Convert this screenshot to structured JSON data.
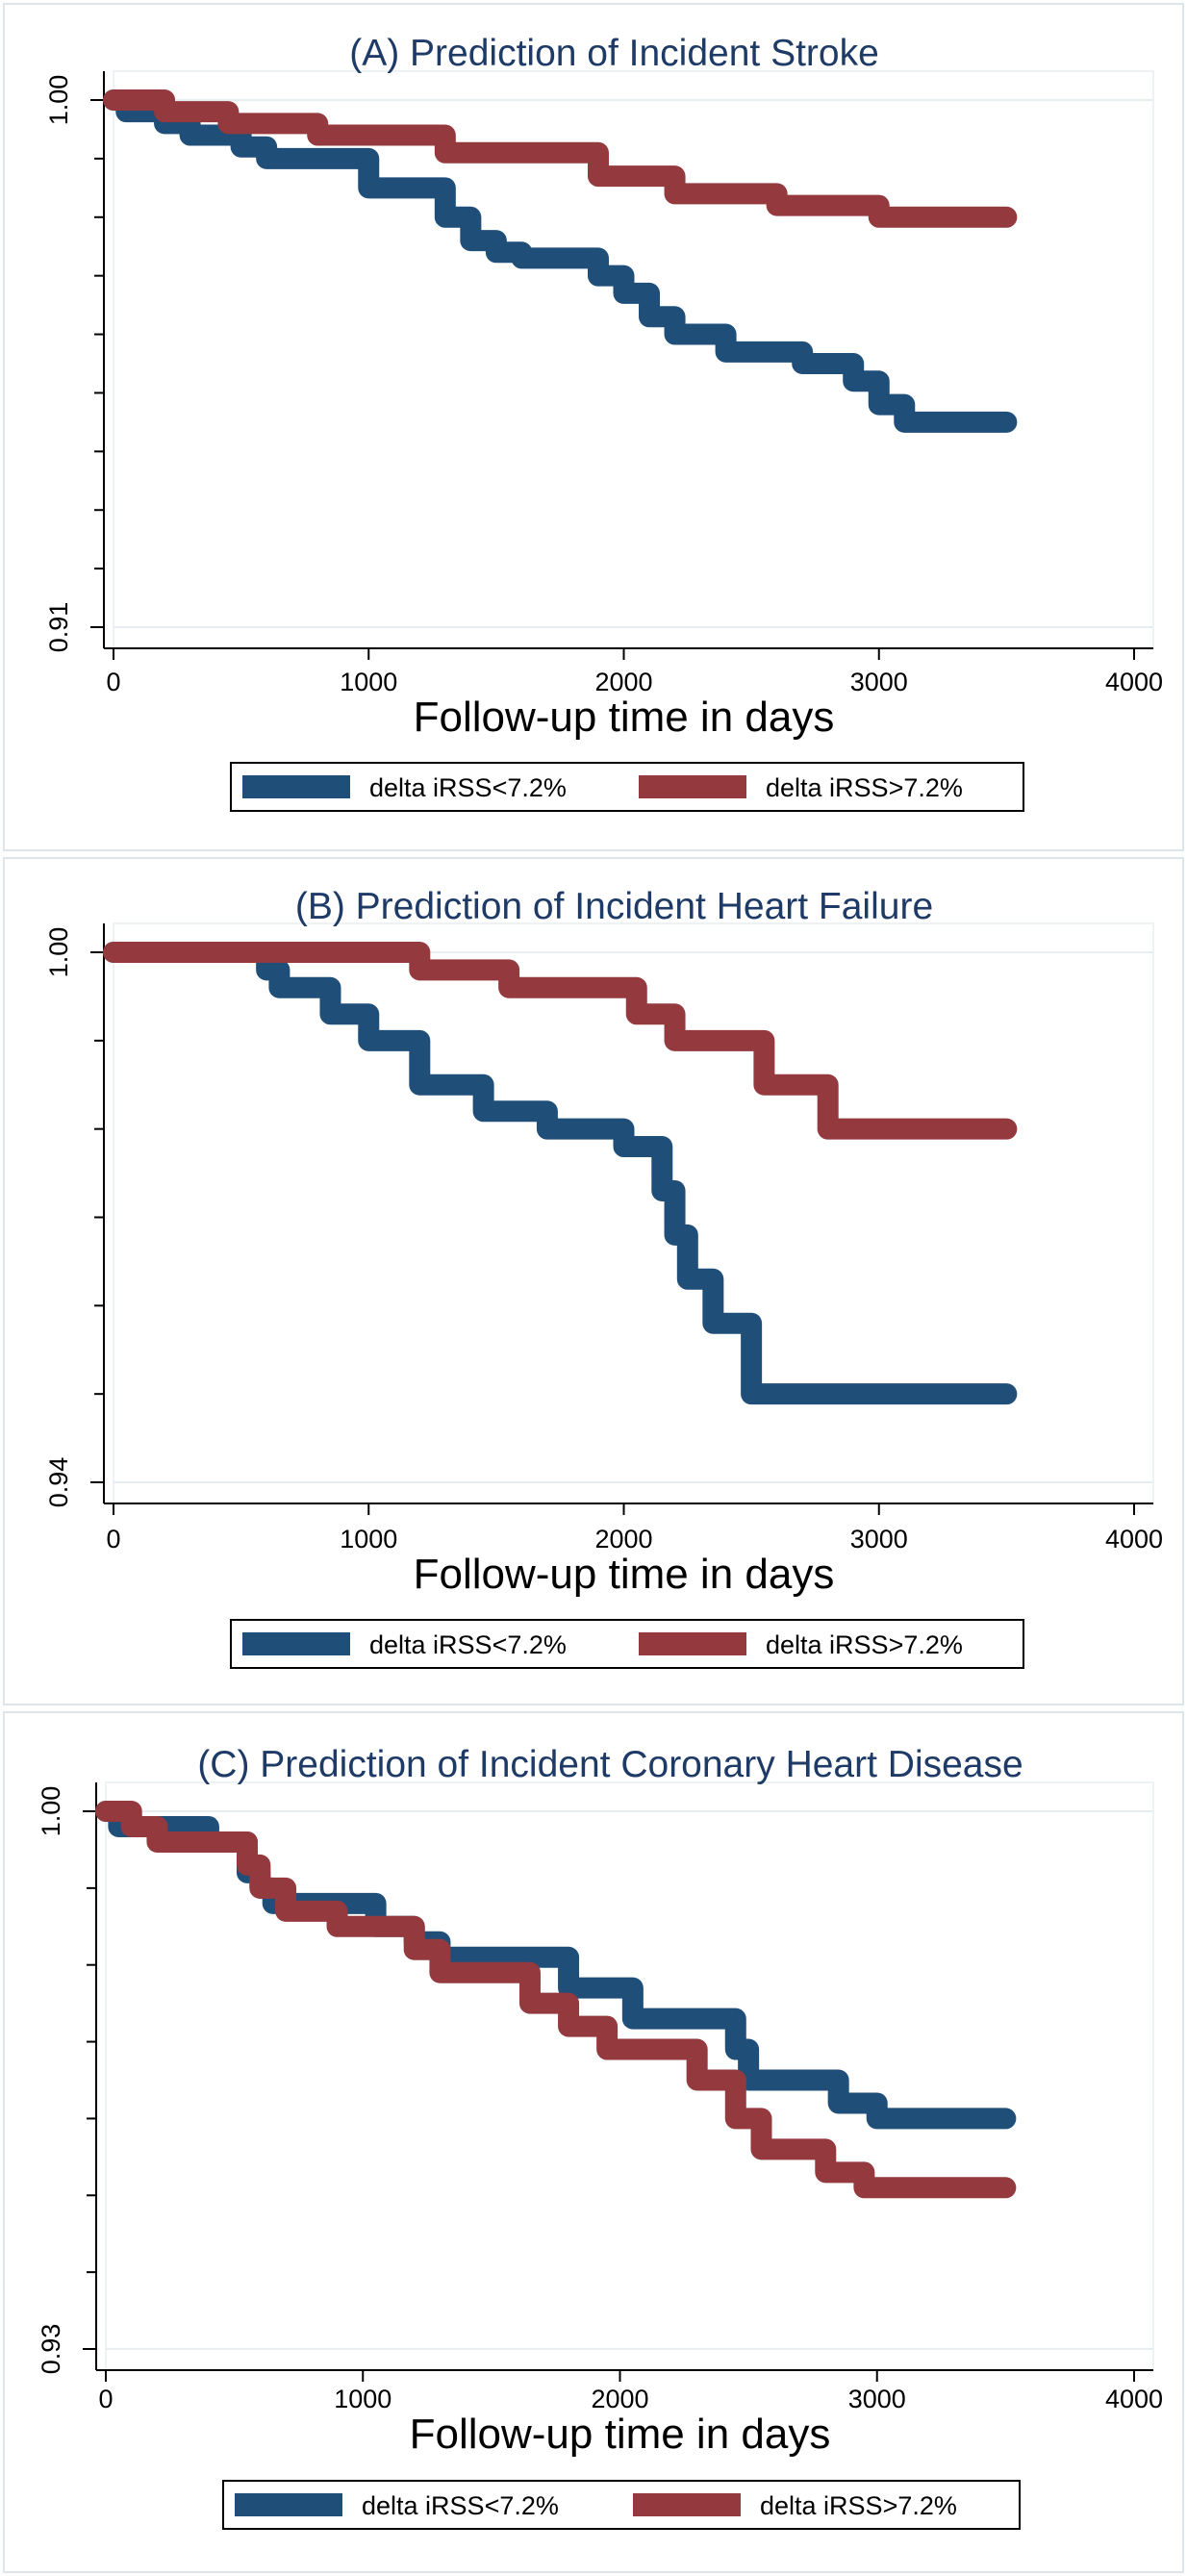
{
  "figure": {
    "xlabel": "Follow-up time in days",
    "colors": {
      "series_1": "#1f4e79",
      "series_2": "#943a3e",
      "grid": "#e6eef1",
      "panel_border": "#dde6ea"
    }
  },
  "chart_data": [
    {
      "type": "line",
      "title": "(A) Prediction of Incident Stroke",
      "xlabel": "Follow-up time in days",
      "ylabel": "",
      "xlim": [
        0,
        4000
      ],
      "ylim": [
        0.91,
        1.0
      ],
      "x_ticks": [
        0,
        1000,
        2000,
        3000,
        4000
      ],
      "x_tick_labels": [
        "0",
        "1000",
        "2000",
        "3000",
        "4000"
      ],
      "y_ticks": [
        0.91,
        1.0
      ],
      "y_tick_labels": [
        "0.91",
        "1.00"
      ],
      "y_minor_ticks": [
        0.92,
        0.93,
        0.94,
        0.95,
        0.96,
        0.97,
        0.98,
        0.99
      ],
      "legend": {
        "position": "bottom",
        "entries": [
          "delta iRSS<7.2%",
          "delta iRSS>7.2%"
        ]
      },
      "series": [
        {
          "name": "delta iRSS<7.2%",
          "color": "#1f4e79",
          "x": [
            0,
            50,
            200,
            300,
            500,
            600,
            1000,
            1300,
            1400,
            1500,
            1600,
            1900,
            2000,
            2100,
            2200,
            2400,
            2700,
            2900,
            3000,
            3100,
            3500
          ],
          "y": [
            1.0,
            0.998,
            0.996,
            0.994,
            0.992,
            0.99,
            0.985,
            0.98,
            0.976,
            0.974,
            0.973,
            0.97,
            0.967,
            0.963,
            0.96,
            0.957,
            0.955,
            0.952,
            0.948,
            0.945,
            0.945
          ]
        },
        {
          "name": "delta iRSS>7.2%",
          "color": "#943a3e",
          "x": [
            0,
            200,
            450,
            800,
            1300,
            1900,
            2200,
            2600,
            3000,
            3500
          ],
          "y": [
            1.0,
            0.998,
            0.996,
            0.994,
            0.991,
            0.987,
            0.984,
            0.982,
            0.98,
            0.98
          ]
        }
      ]
    },
    {
      "type": "line",
      "title": "(B) Prediction of Incident Heart Failure",
      "xlabel": "Follow-up time in days",
      "ylabel": "",
      "xlim": [
        0,
        4000
      ],
      "ylim": [
        0.94,
        1.0
      ],
      "x_ticks": [
        0,
        1000,
        2000,
        3000,
        4000
      ],
      "x_tick_labels": [
        "0",
        "1000",
        "2000",
        "3000",
        "4000"
      ],
      "y_ticks": [
        0.94,
        1.0
      ],
      "y_tick_labels": [
        "0.94",
        "1.00"
      ],
      "y_minor_ticks": [
        0.95,
        0.96,
        0.97,
        0.98,
        0.99
      ],
      "legend": {
        "position": "bottom",
        "entries": [
          "delta iRSS<7.2%",
          "delta iRSS>7.2%"
        ]
      },
      "series": [
        {
          "name": "delta iRSS<7.2%",
          "color": "#1f4e79",
          "x": [
            0,
            600,
            650,
            850,
            1000,
            1200,
            1450,
            1700,
            2000,
            2150,
            2200,
            2250,
            2350,
            2500,
            3500
          ],
          "y": [
            1.0,
            0.998,
            0.996,
            0.993,
            0.99,
            0.985,
            0.982,
            0.98,
            0.978,
            0.973,
            0.968,
            0.963,
            0.958,
            0.95,
            0.95
          ]
        },
        {
          "name": "delta iRSS>7.2%",
          "color": "#943a3e",
          "x": [
            0,
            1200,
            1550,
            2050,
            2200,
            2550,
            2800,
            3500
          ],
          "y": [
            1.0,
            0.998,
            0.996,
            0.993,
            0.99,
            0.985,
            0.98,
            0.98
          ]
        }
      ]
    },
    {
      "type": "line",
      "title": "(C) Prediction of Incident Coronary Heart Disease",
      "xlabel": "Follow-up time in days",
      "ylabel": "",
      "xlim": [
        0,
        4000
      ],
      "ylim": [
        0.93,
        1.0
      ],
      "x_ticks": [
        0,
        1000,
        2000,
        3000,
        4000
      ],
      "x_tick_labels": [
        "0",
        "1000",
        "2000",
        "3000",
        "4000"
      ],
      "y_ticks": [
        0.93,
        1.0
      ],
      "y_tick_labels": [
        "0.93",
        "1.00"
      ],
      "y_minor_ticks": [
        0.94,
        0.95,
        0.96,
        0.97,
        0.98,
        0.99
      ],
      "legend": {
        "position": "bottom",
        "entries": [
          "delta iRSS<7.2%",
          "delta iRSS>7.2%"
        ]
      },
      "series": [
        {
          "name": "delta iRSS<7.2%",
          "color": "#1f4e79",
          "x": [
            0,
            50,
            400,
            550,
            600,
            650,
            1050,
            1200,
            1300,
            1800,
            2050,
            2450,
            2500,
            2850,
            3000,
            3500
          ],
          "y": [
            1.0,
            0.998,
            0.996,
            0.992,
            0.99,
            0.988,
            0.985,
            0.983,
            0.981,
            0.977,
            0.973,
            0.969,
            0.965,
            0.962,
            0.96,
            0.96
          ]
        },
        {
          "name": "delta iRSS>7.2%",
          "color": "#943a3e",
          "x": [
            0,
            100,
            200,
            550,
            600,
            700,
            900,
            1200,
            1300,
            1650,
            1800,
            1950,
            2300,
            2450,
            2550,
            2800,
            2950,
            3500
          ],
          "y": [
            1.0,
            0.998,
            0.996,
            0.993,
            0.99,
            0.987,
            0.985,
            0.982,
            0.979,
            0.975,
            0.972,
            0.969,
            0.965,
            0.96,
            0.956,
            0.953,
            0.951,
            0.951
          ]
        }
      ]
    }
  ]
}
